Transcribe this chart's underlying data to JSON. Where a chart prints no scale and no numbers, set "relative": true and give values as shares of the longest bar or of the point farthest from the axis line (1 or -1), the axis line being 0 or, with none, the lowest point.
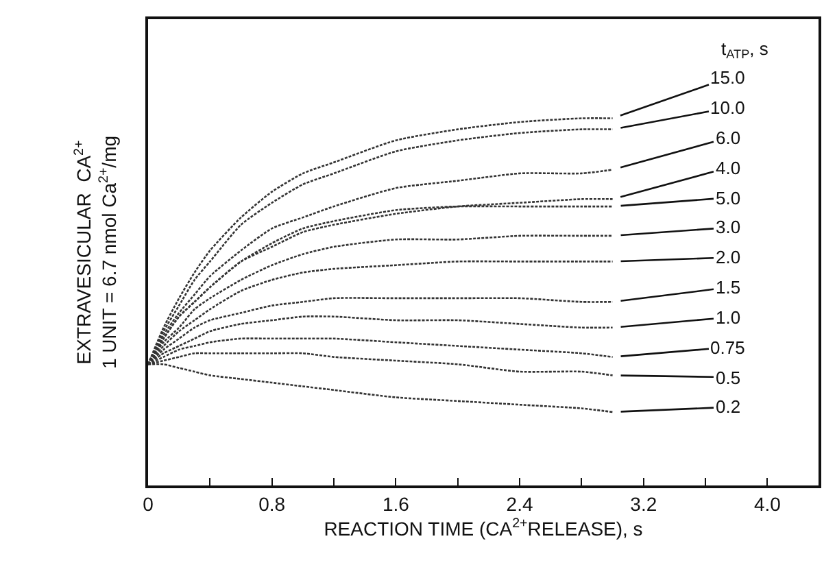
{
  "chart_data": {
    "type": "line",
    "relative": true,
    "xlabel": "REACTION TIME (CA$^{2+}$RELEASE), s",
    "ylabel": "EXTRAVESICULAR  CA$^{2+}$\n1 UNIT = 6.7 nmol Ca$^{2+}$/mg",
    "legend_title": "t$_{ATP}$, s",
    "x": [
      0,
      0.1,
      0.2,
      0.3,
      0.4,
      0.6,
      0.8,
      1.0,
      1.2,
      1.6,
      2.0,
      2.4,
      2.8,
      3.0
    ],
    "xlim": [
      0,
      4.33
    ],
    "xticks": [
      0,
      {
        "value": 0.4,
        "label": null
      },
      0.8,
      {
        "value": 1.2,
        "label": null
      },
      1.6,
      {
        "value": 2.0,
        "label": null
      },
      2.4,
      {
        "value": 2.8,
        "label": null
      },
      3.2,
      {
        "value": 3.6,
        "label": null
      },
      {
        "value": 4.0,
        "label": "4.0"
      }
    ],
    "grid": false,
    "legend": false,
    "marker": "none",
    "line_style": "dotted",
    "series": [
      {
        "name": "15.0",
        "color": "#333333",
        "values": [
          0.33,
          0.43,
          0.51,
          0.58,
          0.64,
          0.73,
          0.8,
          0.85,
          0.88,
          0.94,
          0.97,
          0.99,
          1.0,
          1.0
        ]
      },
      {
        "name": "10.0",
        "color": "#333333",
        "values": [
          0.33,
          0.42,
          0.49,
          0.56,
          0.61,
          0.71,
          0.77,
          0.82,
          0.85,
          0.91,
          0.94,
          0.96,
          0.97,
          0.97
        ]
      },
      {
        "name": "6.0",
        "color": "#333333",
        "values": [
          0.33,
          0.41,
          0.47,
          0.52,
          0.57,
          0.64,
          0.7,
          0.73,
          0.76,
          0.81,
          0.83,
          0.85,
          0.85,
          0.86
        ]
      },
      {
        "name": "4.0",
        "color": "#333333",
        "values": [
          0.33,
          0.4,
          0.46,
          0.5,
          0.54,
          0.61,
          0.65,
          0.69,
          0.71,
          0.74,
          0.76,
          0.77,
          0.78,
          0.78
        ]
      },
      {
        "name": "5.0",
        "color": "#333333",
        "values": [
          0.33,
          0.4,
          0.46,
          0.5,
          0.54,
          0.61,
          0.66,
          0.7,
          0.72,
          0.75,
          0.76,
          0.76,
          0.76,
          0.76
        ]
      },
      {
        "name": "3.0",
        "color": "#333333",
        "values": [
          0.33,
          0.39,
          0.43,
          0.48,
          0.51,
          0.56,
          0.6,
          0.63,
          0.65,
          0.67,
          0.67,
          0.68,
          0.68,
          0.68
        ]
      },
      {
        "name": "2.0",
        "color": "#333333",
        "values": [
          0.33,
          0.38,
          0.42,
          0.45,
          0.48,
          0.53,
          0.56,
          0.58,
          0.59,
          0.6,
          0.61,
          0.61,
          0.61,
          0.61
        ]
      },
      {
        "name": "1.5",
        "color": "#333333",
        "values": [
          0.33,
          0.37,
          0.4,
          0.43,
          0.45,
          0.47,
          0.49,
          0.5,
          0.51,
          0.51,
          0.51,
          0.51,
          0.5,
          0.5
        ]
      },
      {
        "name": "1.0",
        "color": "#333333",
        "values": [
          0.33,
          0.36,
          0.38,
          0.4,
          0.42,
          0.44,
          0.45,
          0.46,
          0.46,
          0.45,
          0.45,
          0.44,
          0.43,
          0.43
        ]
      },
      {
        "name": "0.75",
        "color": "#333333",
        "values": [
          0.33,
          0.35,
          0.37,
          0.38,
          0.39,
          0.4,
          0.4,
          0.4,
          0.4,
          0.39,
          0.38,
          0.37,
          0.36,
          0.35
        ]
      },
      {
        "name": "0.5",
        "color": "#333333",
        "values": [
          0.33,
          0.34,
          0.35,
          0.36,
          0.36,
          0.36,
          0.36,
          0.36,
          0.35,
          0.34,
          0.33,
          0.31,
          0.31,
          0.3
        ]
      },
      {
        "name": "0.2",
        "color": "#333333",
        "values": [
          0.33,
          0.33,
          0.32,
          0.31,
          0.3,
          0.29,
          0.28,
          0.27,
          0.26,
          0.24,
          0.23,
          0.22,
          0.21,
          0.2
        ]
      }
    ]
  }
}
